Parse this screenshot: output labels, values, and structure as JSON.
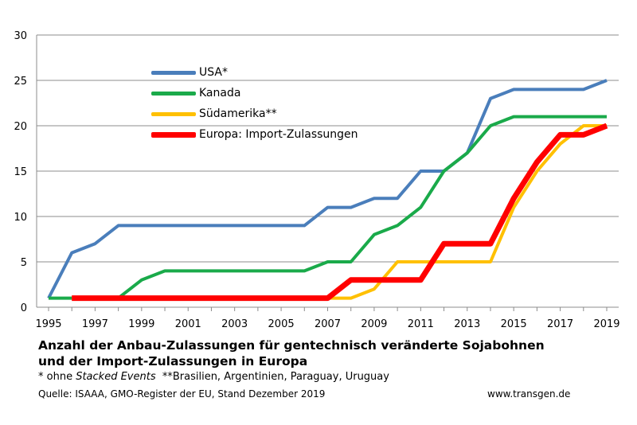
{
  "chart_data": {
    "type": "line",
    "x": [
      1995,
      1996,
      1997,
      1998,
      1999,
      2000,
      2001,
      2002,
      2003,
      2004,
      2005,
      2006,
      2007,
      2008,
      2009,
      2010,
      2011,
      2012,
      2013,
      2014,
      2015,
      2016,
      2017,
      2018,
      2019
    ],
    "xticks": [
      "1995",
      "1997",
      "1999",
      "2001",
      "2003",
      "2005",
      "2007",
      "2009",
      "2011",
      "2013",
      "2015",
      "2017",
      "2019"
    ],
    "yticks": [
      "0",
      "5",
      "10",
      "15",
      "20",
      "25",
      "30"
    ],
    "ylim": [
      0,
      30
    ],
    "xlim": [
      1995,
      2019
    ],
    "grid": true,
    "legend_position": "top-left",
    "series": [
      {
        "name": "USA*",
        "color": "#4a7ebb",
        "width": 4,
        "x": [
          1995,
          1996,
          1997,
          1998,
          1999,
          2000,
          2001,
          2002,
          2003,
          2004,
          2005,
          2006,
          2007,
          2008,
          2009,
          2010,
          2011,
          2012,
          2013,
          2014,
          2015,
          2016,
          2017,
          2018,
          2019
        ],
        "values": [
          1,
          6,
          7,
          9,
          9,
          9,
          9,
          9,
          9,
          9,
          9,
          9,
          11,
          11,
          12,
          12,
          15,
          15,
          17,
          23,
          24,
          24,
          24,
          24,
          25
        ]
      },
      {
        "name": "Kanada",
        "color": "#1aaa4a",
        "width": 4,
        "x": [
          1995,
          1996,
          1997,
          1998,
          1999,
          2000,
          2001,
          2002,
          2003,
          2004,
          2005,
          2006,
          2007,
          2008,
          2009,
          2010,
          2011,
          2012,
          2013,
          2014,
          2015,
          2016,
          2017,
          2018,
          2019
        ],
        "values": [
          1,
          1,
          1,
          1,
          3,
          4,
          4,
          4,
          4,
          4,
          4,
          4,
          5,
          5,
          8,
          9,
          11,
          15,
          17,
          20,
          21,
          21,
          21,
          21,
          21
        ]
      },
      {
        "name": "Südamerika**",
        "color": "#ffc000",
        "width": 4,
        "x": [
          1996,
          1997,
          1998,
          1999,
          2000,
          2001,
          2002,
          2003,
          2004,
          2005,
          2006,
          2007,
          2008,
          2009,
          2010,
          2011,
          2012,
          2013,
          2014,
          2015,
          2016,
          2017,
          2018,
          2019
        ],
        "values": [
          1,
          1,
          1,
          1,
          1,
          1,
          1,
          1,
          1,
          1,
          1,
          1,
          1,
          2,
          5,
          5,
          5,
          5,
          5,
          11,
          15,
          18,
          20,
          20
        ]
      },
      {
        "name": "Europa: Import-Zulassungen",
        "color": "#ff0000",
        "width": 7,
        "x": [
          1996,
          1997,
          1998,
          1999,
          2000,
          2001,
          2002,
          2003,
          2004,
          2005,
          2006,
          2007,
          2008,
          2009,
          2010,
          2011,
          2012,
          2013,
          2014,
          2015,
          2016,
          2017,
          2018,
          2019
        ],
        "values": [
          1,
          1,
          1,
          1,
          1,
          1,
          1,
          1,
          1,
          1,
          1,
          1,
          3,
          3,
          3,
          3,
          7,
          7,
          7,
          12,
          16,
          19,
          19,
          20
        ]
      }
    ],
    "title": "Anzahl der Anbau-Zulassungen für gentechnisch veränderte Sojabohnen und der Import-Zulassungen in Europa",
    "xlabel": "",
    "ylabel": ""
  },
  "caption": {
    "title_line1": "Anzahl der Anbau-Zulassungen für gentechnisch veränderte Sojabohnen",
    "title_line2": "und der Import-Zulassungen in Europa",
    "note_prefix": "* ohne ",
    "note_italic": "Stacked Events",
    "note_suffix": "  **Brasilien, Argentinien, Paraguay, Uruguay",
    "source": "Quelle: ISAAA, GMO-Register der EU, Stand Dezember 2019",
    "website": "www.transgen.de"
  }
}
